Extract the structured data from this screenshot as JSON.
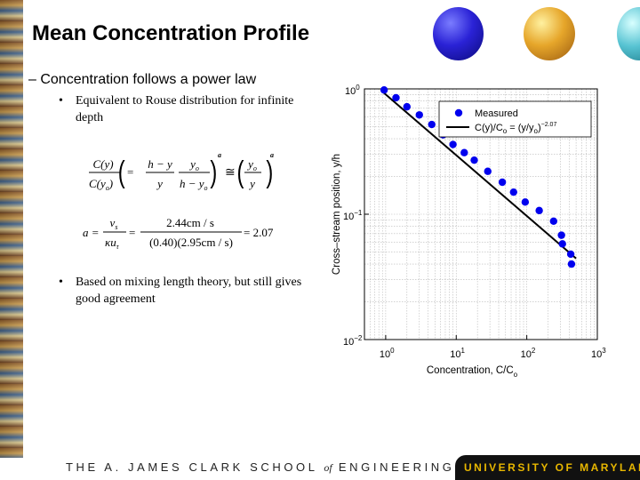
{
  "slide": {
    "title": "Mean Concentration Profile",
    "bullet": "– Concentration follows a power law",
    "subbullets": [
      "Equivalent to Rouse distribution for infinite depth",
      "Based on mixing length theory, but still gives good agreement"
    ],
    "subbullet_marker": "•",
    "footer_left": {
      "pre": "THE A. JAMES CLARK SCHOOL ",
      "of": "of",
      "post": " ENGINEERING"
    },
    "footer_right": "UNIVERSITY OF MARYLAND"
  },
  "equations": {
    "eq1": {
      "lhs_num": "C(y)",
      "lhs_den": "C(y",
      "lhs_den_sub": "o",
      "frac2_num": "h − y",
      "frac2_den": "y",
      "frac3_num": "y",
      "frac3_num_sub": "o",
      "frac3_den": "h − y",
      "frac3_den_sub": "o",
      "frac4_num": "y",
      "frac4_num_sub": "o",
      "frac4_den": "y",
      "exp": "a"
    },
    "eq2": {
      "lhs": "a =",
      "num1": "v",
      "num1_sub": "s",
      "den1": "κu",
      "den1_sub": "τ",
      "eq": "=",
      "num2": "2.44cm / s",
      "den2": "(0.40)(2.95cm / s)",
      "rhs": "= 2.07"
    }
  },
  "colors": {
    "background": "#ffffff",
    "marker": "#0000ee",
    "fit_line": "#000000",
    "footer_bar": "#111111",
    "footer_text": "#e8b700"
  },
  "chart_data": {
    "type": "scatter",
    "xlabel": "Concentration, C/C",
    "xlabel_sub": "o",
    "ylabel": "Cross–stream position, y/h",
    "x_scale": "log",
    "y_scale": "log",
    "xlim": [
      0.5,
      1000
    ],
    "ylim": [
      0.01,
      1.0
    ],
    "x_ticks": [
      {
        "base": "10",
        "exp": "0",
        "value": 1
      },
      {
        "base": "10",
        "exp": "1",
        "value": 10
      },
      {
        "base": "10",
        "exp": "2",
        "value": 100
      },
      {
        "base": "10",
        "exp": "3",
        "value": 1000
      }
    ],
    "y_ticks": [
      {
        "base": "10",
        "exp": "−2",
        "value": 0.01
      },
      {
        "base": "10",
        "exp": "−1",
        "value": 0.1
      },
      {
        "base": "10",
        "exp": "0",
        "value": 1
      }
    ],
    "grid": true,
    "legend_position": "top-right",
    "series": [
      {
        "name": "Measured",
        "kind": "markers",
        "x": [
          0.95,
          1.4,
          2.0,
          3.0,
          4.5,
          6.5,
          9.0,
          13,
          18,
          28,
          45,
          65,
          95,
          150,
          240,
          310,
          320,
          420,
          430
        ],
        "y": [
          0.98,
          0.85,
          0.72,
          0.62,
          0.52,
          0.43,
          0.36,
          0.31,
          0.27,
          0.22,
          0.18,
          0.15,
          0.125,
          0.107,
          0.088,
          0.068,
          0.058,
          0.048,
          0.04
        ]
      },
      {
        "name": "C(y)/C",
        "name_sub": "o",
        "name_eq": " = (y/y",
        "name_eq_sub": "o",
        "name_exp": "−2.07",
        "kind": "line",
        "x": [
          0.9,
          500
        ],
        "y": [
          0.95,
          0.0444
        ]
      }
    ]
  }
}
